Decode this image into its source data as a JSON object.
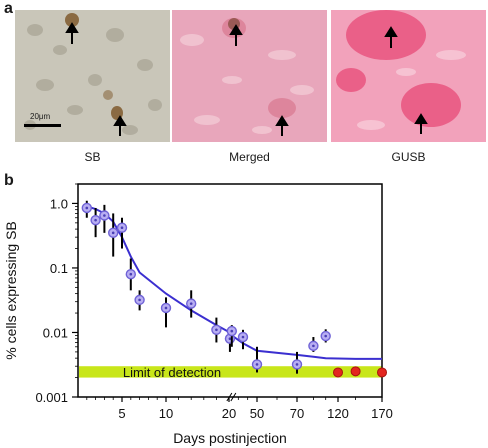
{
  "panel_a": {
    "letter": "a",
    "images": [
      {
        "label": "SB",
        "tint": "#b8b3a4"
      },
      {
        "label": "Merged",
        "tint": "#e7a3b7"
      },
      {
        "label": "GUSB",
        "tint": "#f06a8c"
      }
    ],
    "scale_bar_label": "20μm"
  },
  "panel_b": {
    "letter": "b"
  },
  "chart_data": {
    "type": "scatter",
    "ylabel": "% cells expressing SB",
    "xlabel": "Days postinjection",
    "y_scale": "log",
    "ylim": [
      0.001,
      2
    ],
    "x_ticks": [
      "5",
      "10",
      "20",
      "50",
      "70",
      "120",
      "170"
    ],
    "x_axis_break": "between 20 and 50",
    "y_ticks": [
      "1.0",
      "0.1",
      "0.01",
      "0.001"
    ],
    "detection_band": {
      "label": "Limit of detection",
      "range": [
        0.002,
        0.003
      ],
      "color": "#c8e61a"
    },
    "series": [
      {
        "marker": "blue circle with error bar",
        "points": [
          {
            "x": 1,
            "y": 0.85,
            "lo": 0.6,
            "hi": 1.1
          },
          {
            "x": 2,
            "y": 0.55,
            "lo": 0.3,
            "hi": 0.85
          },
          {
            "x": 3,
            "y": 0.65,
            "lo": 0.35,
            "hi": 0.95
          },
          {
            "x": 4,
            "y": 0.35,
            "lo": 0.15,
            "hi": 0.7
          },
          {
            "x": 5,
            "y": 0.42,
            "lo": 0.2,
            "hi": 0.6
          },
          {
            "x": 6,
            "y": 0.08,
            "lo": 0.045,
            "hi": 0.14
          },
          {
            "x": 7,
            "y": 0.032,
            "lo": 0.022,
            "hi": 0.045
          },
          {
            "x": 10,
            "y": 0.024,
            "lo": 0.012,
            "hi": 0.035
          },
          {
            "x": 14,
            "y": 0.028,
            "lo": 0.017,
            "hi": 0.045
          },
          {
            "x": 18,
            "y": 0.011,
            "lo": 0.007,
            "hi": 0.017
          },
          {
            "x": 21,
            "y": 0.008,
            "lo": 0.005,
            "hi": 0.011
          },
          {
            "x": 23,
            "y": 0.0105,
            "lo": 0.006,
            "hi": 0.013
          },
          {
            "x": 35,
            "y": 0.0085,
            "lo": 0.0055,
            "hi": 0.011
          },
          {
            "x": 50,
            "y": 0.0032,
            "lo": 0.0024,
            "hi": 0.006
          },
          {
            "x": 70,
            "y": 0.0032,
            "lo": 0.0023,
            "hi": 0.005
          },
          {
            "x": 90,
            "y": 0.0062,
            "lo": 0.005,
            "hi": 0.0085
          },
          {
            "x": 105,
            "y": 0.0088,
            "lo": 0.007,
            "hi": 0.0112
          }
        ]
      },
      {
        "marker": "red circle",
        "points": [
          {
            "x": 120,
            "y": 0.0024
          },
          {
            "x": 140,
            "y": 0.0025
          },
          {
            "x": 170,
            "y": 0.0024
          }
        ]
      }
    ],
    "fit_curve": {
      "color": "#3b2fd0",
      "points": [
        [
          1,
          0.9
        ],
        [
          2,
          0.82
        ],
        [
          3,
          0.7
        ],
        [
          4,
          0.52
        ],
        [
          5,
          0.3
        ],
        [
          6,
          0.15
        ],
        [
          7,
          0.085
        ],
        [
          10,
          0.04
        ],
        [
          14,
          0.022
        ],
        [
          18,
          0.013
        ],
        [
          21,
          0.01
        ],
        [
          23,
          0.009
        ],
        [
          35,
          0.0068
        ],
        [
          50,
          0.0052
        ],
        [
          70,
          0.0045
        ],
        [
          90,
          0.0042
        ],
        [
          105,
          0.004
        ],
        [
          140,
          0.0039
        ],
        [
          170,
          0.0039
        ]
      ]
    }
  }
}
